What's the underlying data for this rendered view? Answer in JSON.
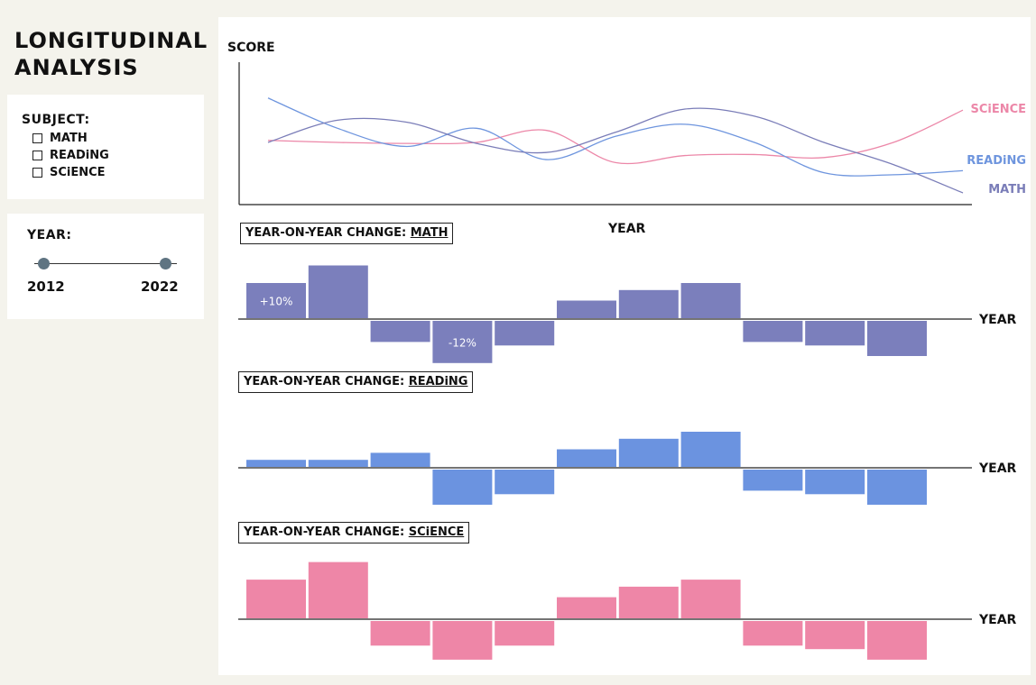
{
  "app": {
    "title_line1": "LONGITUDINAL",
    "title_line2": "ANALYSiS"
  },
  "filters": {
    "subject_label": "SUBJECT:",
    "subjects": [
      {
        "label": "MATH",
        "checked": false
      },
      {
        "label": "READiNG",
        "checked": false
      },
      {
        "label": "SCiENCE",
        "checked": false
      }
    ],
    "year_label": "YEAR:",
    "year_start": "2012",
    "year_end": "2022"
  },
  "colors": {
    "math": "#7b7fbc",
    "reading": "#6b93e0",
    "science": "#ee86a7",
    "math_line": "#7a7db8",
    "reading_line": "#6e95de",
    "science_line": "#ec87a8"
  },
  "chart_data": [
    {
      "type": "line",
      "ylabel": "SCORE",
      "xlabel": "YEAR",
      "series": [
        {
          "name": "SCiENCE",
          "values": [
            52,
            50,
            49,
            50,
            62,
            30,
            37,
            38,
            35,
            50,
            82
          ]
        },
        {
          "name": "READiNG",
          "values": [
            94,
            64,
            46,
            64,
            33,
            56,
            68,
            50,
            20,
            18,
            22
          ]
        },
        {
          "name": "MATH",
          "values": [
            50,
            72,
            70,
            49,
            40,
            60,
            83,
            76,
            50,
            28,
            0
          ]
        }
      ]
    },
    {
      "type": "bar",
      "title_prefix": "YEAR-ON-YEAR CHANGE:",
      "title_subject": "MATH",
      "xlabel": "YEAR",
      "values": [
        10,
        15,
        -6,
        -12,
        -7,
        5,
        8,
        10,
        -6,
        -7,
        -10
      ],
      "data_labels": [
        "+10%",
        "",
        "",
        "-12%",
        "",
        "",
        "",
        "",
        "",
        "",
        ""
      ]
    },
    {
      "type": "bar",
      "title_prefix": "YEAR-ON-YEAR CHANGE:",
      "title_subject": "READiNG",
      "xlabel": "YEAR",
      "values": [
        2,
        2,
        4,
        -10,
        -7,
        5,
        8,
        10,
        -6,
        -7,
        -10
      ],
      "data_labels": [
        "",
        "",
        "",
        "",
        "",
        "",
        "",
        "",
        "",
        "",
        ""
      ]
    },
    {
      "type": "bar",
      "title_prefix": "YEAR-ON-YEAR CHANGE:",
      "title_subject": "SCiENCE",
      "xlabel": "YEAR",
      "values": [
        11,
        16,
        -7,
        -11,
        -7,
        6,
        9,
        11,
        -7,
        -8,
        -11
      ],
      "data_labels": [
        "",
        "",
        "",
        "",
        "",
        "",
        "",
        "",
        "",
        "",
        ""
      ]
    }
  ]
}
